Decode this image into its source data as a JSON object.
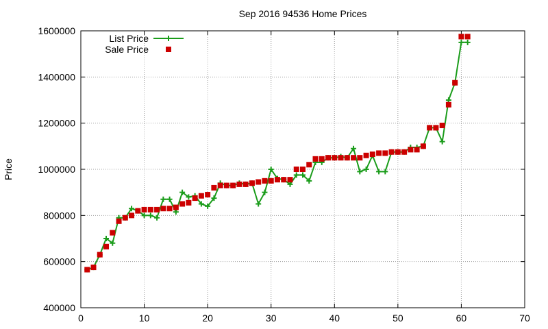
{
  "chart_data": {
    "type": "line",
    "title": "Sep 2016 94536 Home Prices",
    "xlabel": "",
    "ylabel": "Price",
    "xlim": [
      0,
      70
    ],
    "ylim": [
      400000,
      1600000
    ],
    "xticks": [
      0,
      10,
      20,
      30,
      40,
      50,
      60,
      70
    ],
    "yticks": [
      400000,
      600000,
      800000,
      1000000,
      1200000,
      1400000,
      1600000
    ],
    "xtick_labels": [
      "0",
      "10",
      "20",
      "30",
      "40",
      "50",
      "60",
      "70"
    ],
    "ytick_labels": [
      "400000",
      "600000",
      "800000",
      "1000000",
      "1200000",
      "1400000",
      "1600000"
    ],
    "grid": true,
    "legend_position": "top-left",
    "series": [
      {
        "name": "List Price",
        "style": "line with plus markers",
        "color": "#1a9c1a",
        "x": [
          1,
          2,
          3,
          4,
          5,
          6,
          7,
          8,
          9,
          10,
          11,
          12,
          13,
          14,
          15,
          16,
          17,
          18,
          19,
          20,
          21,
          22,
          23,
          24,
          25,
          26,
          27,
          28,
          29,
          30,
          31,
          32,
          33,
          34,
          35,
          36,
          37,
          38,
          39,
          40,
          41,
          42,
          43,
          44,
          45,
          46,
          47,
          48,
          49,
          50,
          51,
          52,
          53,
          54,
          55,
          56,
          57,
          58,
          59,
          60,
          61
        ],
        "y": [
          565000,
          575000,
          630000,
          700000,
          680000,
          790000,
          790000,
          830000,
          820000,
          800000,
          800000,
          790000,
          870000,
          870000,
          815000,
          900000,
          880000,
          885000,
          850000,
          840000,
          875000,
          940000,
          930000,
          930000,
          940000,
          935000,
          940000,
          850000,
          900000,
          1000000,
          960000,
          955000,
          935000,
          975000,
          975000,
          950000,
          1030000,
          1030000,
          1050000,
          1050000,
          1055000,
          1050000,
          1090000,
          990000,
          1000000,
          1060000,
          990000,
          990000,
          1075000,
          1075000,
          1075000,
          1095000,
          1095000,
          1100000,
          1180000,
          1180000,
          1120000,
          1300000,
          1375000,
          1550000,
          1550000
        ]
      },
      {
        "name": "Sale Price",
        "style": "square markers",
        "color": "#cc0000",
        "x": [
          1,
          2,
          3,
          4,
          5,
          6,
          7,
          8,
          9,
          10,
          11,
          12,
          13,
          14,
          15,
          16,
          17,
          18,
          19,
          20,
          21,
          22,
          23,
          24,
          25,
          26,
          27,
          28,
          29,
          30,
          31,
          32,
          33,
          34,
          35,
          36,
          37,
          38,
          39,
          40,
          41,
          42,
          43,
          44,
          45,
          46,
          47,
          48,
          49,
          50,
          51,
          52,
          53,
          54,
          55,
          56,
          57,
          58,
          59,
          60,
          61
        ],
        "y": [
          565000,
          575000,
          630000,
          665000,
          725000,
          775000,
          790000,
          800000,
          820000,
          825000,
          825000,
          825000,
          830000,
          830000,
          835000,
          850000,
          855000,
          875000,
          885000,
          890000,
          920000,
          930000,
          930000,
          930000,
          935000,
          935000,
          940000,
          945000,
          950000,
          950000,
          955000,
          955000,
          955000,
          1000000,
          1000000,
          1020000,
          1045000,
          1045000,
          1050000,
          1050000,
          1050000,
          1050000,
          1050000,
          1050000,
          1060000,
          1065000,
          1070000,
          1070000,
          1075000,
          1075000,
          1075000,
          1085000,
          1085000,
          1100000,
          1180000,
          1180000,
          1190000,
          1280000,
          1375000,
          1575000,
          1575000
        ]
      }
    ]
  }
}
